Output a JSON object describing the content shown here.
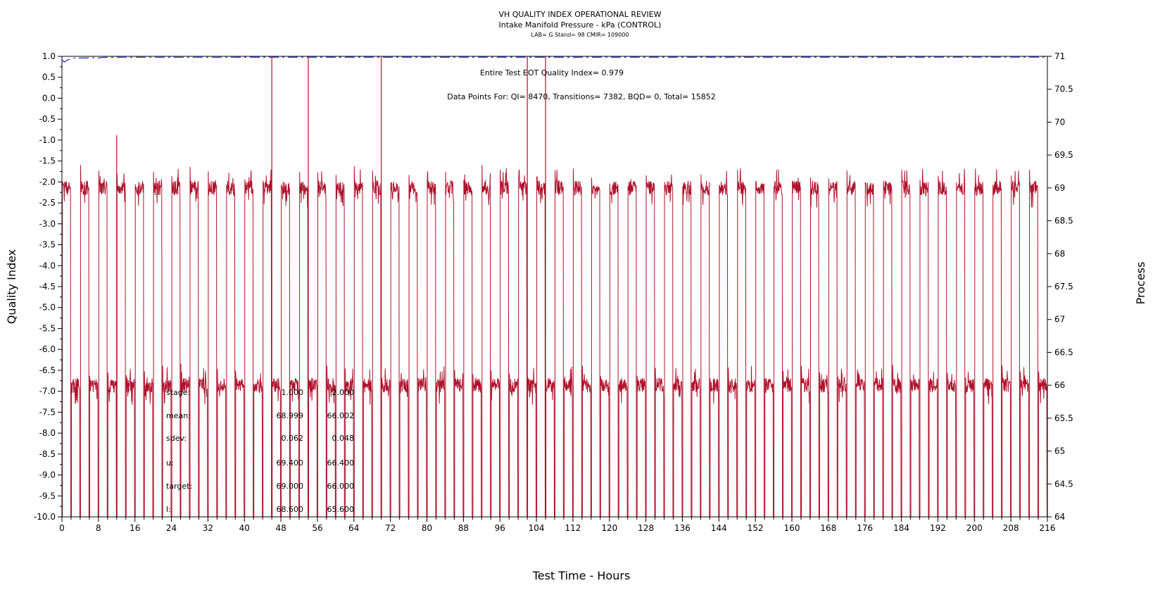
{
  "chart_data": {
    "type": "line",
    "title": "VH QUALITY INDEX OPERATIONAL REVIEW",
    "subtitle": "Intake Manifold Pressure - kPa (CONTROL)",
    "subtitle2": "LAB= G Stand= 98 CMIR= 109000",
    "xlabel": "Test Time - Hours",
    "ylabel_left": "Quality Index",
    "ylabel_right": "Process",
    "xlim": [
      0,
      216
    ],
    "ylim_left": [
      -10,
      1
    ],
    "ylim_right": [
      64,
      71
    ],
    "x_ticks": [
      0,
      8,
      16,
      24,
      32,
      40,
      48,
      56,
      64,
      72,
      80,
      88,
      96,
      104,
      112,
      120,
      128,
      136,
      144,
      152,
      160,
      168,
      176,
      184,
      192,
      200,
      208,
      216
    ],
    "y_left_ticks": [
      "1.0",
      "0.5",
      "0.0",
      "-0.5",
      "-1.0",
      "-1.5",
      "-2.0",
      "-2.5",
      "-3.0",
      "-3.5",
      "-4.0",
      "-4.5",
      "-5.0",
      "-5.5",
      "-6.0",
      "-6.5",
      "-7.0",
      "-7.5",
      "-8.0",
      "-8.5",
      "-9.0",
      "-9.5",
      "-10.0"
    ],
    "y_right_ticks": [
      "71",
      "70.5",
      "70",
      "69.5",
      "69",
      "68.5",
      "68",
      "67.5",
      "67",
      "66.5",
      "66",
      "65.5",
      "65",
      "64.5",
      "64"
    ],
    "annotations": {
      "eot": "Entire Test EOT Quality Index=   0.979",
      "points": "Data Points For: QI=  8470, Transitions=  7382, BQD=     0, Total=  15852"
    },
    "stats": {
      "labels": [
        "stage:",
        "mean:",
        "sdev:",
        "u:",
        "target:",
        "l:"
      ],
      "col1": [
        "1.000",
        "68.999",
        "0.062",
        "69.400",
        "69.000",
        "68.600"
      ],
      "col2": [
        "2.000",
        "66.002",
        "0.048",
        "66.400",
        "66.000",
        "65.600"
      ]
    },
    "series": [
      {
        "color": "#1f2bd6",
        "axis": "left",
        "style": "dashed",
        "x": [
          0,
          0.5,
          1,
          2,
          3,
          5,
          7,
          8,
          9,
          12,
          216
        ],
        "y": [
          0.92,
          0.86,
          0.9,
          0.95,
          0.96,
          0.96,
          0.97,
          0.96,
          0.975,
          0.978,
          0.979
        ]
      },
      {
        "color": "#b0102a",
        "axis": "right",
        "style": "solid",
        "stage_levels": [
          69.0,
          66.0
        ],
        "cycle_hours": 2,
        "transition_min": 64.0,
        "spikes": [
          {
            "x": 46,
            "y": 71
          },
          {
            "x": 54,
            "y": 71
          },
          {
            "x": 70,
            "y": 71
          },
          {
            "x": 102,
            "y": 71
          },
          {
            "x": 106,
            "y": 71
          },
          {
            "x": 12,
            "y": 69.8
          }
        ]
      }
    ]
  }
}
